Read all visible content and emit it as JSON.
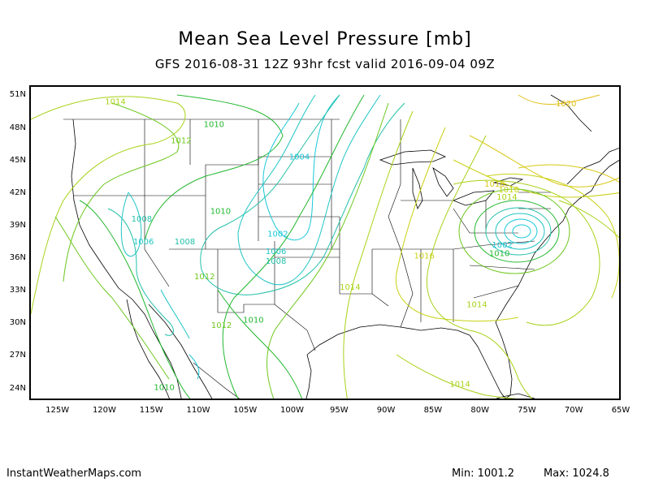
{
  "title": "Mean Sea Level Pressure [mb]",
  "subtitle": "GFS 2016-08-31 12Z 93hr fcst valid 2016-09-04 09Z",
  "lat_labels": [
    "51N",
    "48N",
    "45N",
    "42N",
    "39N",
    "36N",
    "33N",
    "30N",
    "27N",
    "24N"
  ],
  "lon_labels": [
    "125W",
    "120W",
    "115W",
    "110W",
    "105W",
    "100W",
    "95W",
    "90W",
    "85W",
    "80W",
    "75W",
    "70W",
    "65W"
  ],
  "footer": {
    "site": "InstantWeatherMaps.com",
    "min_label": "Min: 1001.2",
    "max_label": "Max: 1024.8"
  },
  "colors": {
    "c1004": "#17c8d8",
    "c1006": "#20c4c4",
    "c1008": "#22c0a8",
    "c1010": "#22b830",
    "c1012": "#6ec81e",
    "c1014": "#a8d218",
    "c1016": "#c8d214",
    "c1018": "#d8c814",
    "c1020": "#e0be14"
  },
  "contour_labels": [
    {
      "text": "1014",
      "color": "c1014",
      "lon": -119,
      "lat": 50.4
    },
    {
      "text": "1010",
      "color": "c1010",
      "lon": -108.5,
      "lat": 48.3
    },
    {
      "text": "1012",
      "color": "c1012",
      "lon": -112,
      "lat": 46.8
    },
    {
      "text": "1004",
      "color": "c1004",
      "lon": -99.4,
      "lat": 45.3
    },
    {
      "text": "1008",
      "color": "c1008",
      "lon": -116.2,
      "lat": 39.6
    },
    {
      "text": "1010",
      "color": "c1010",
      "lon": -107.8,
      "lat": 40.3
    },
    {
      "text": "1006",
      "color": "c1006",
      "lon": -116,
      "lat": 37.5
    },
    {
      "text": "1008",
      "color": "c1008",
      "lon": -111.6,
      "lat": 37.5
    },
    {
      "text": "1002",
      "color": "c1004",
      "lon": -101.7,
      "lat": 38.2
    },
    {
      "text": "1006",
      "color": "c1006",
      "lon": -101.9,
      "lat": 36.6
    },
    {
      "text": "1008",
      "color": "c1008",
      "lon": -101.9,
      "lat": 35.7
    },
    {
      "text": "1012",
      "color": "c1012",
      "lon": -109.5,
      "lat": 34.3
    },
    {
      "text": "1010",
      "color": "c1010",
      "lon": -104.3,
      "lat": 30.3
    },
    {
      "text": "1012",
      "color": "c1012",
      "lon": -107.7,
      "lat": 29.8
    },
    {
      "text": "1014",
      "color": "c1014",
      "lon": -94,
      "lat": 33.3
    },
    {
      "text": "1010",
      "color": "c1010",
      "lon": -113.8,
      "lat": 24.1
    },
    {
      "text": "1016",
      "color": "c1016",
      "lon": -86.1,
      "lat": 36.2
    },
    {
      "text": "1010",
      "color": "c1010",
      "lon": -78.1,
      "lat": 36.4
    },
    {
      "text": "1014",
      "color": "c1014",
      "lon": -80.5,
      "lat": 31.7
    },
    {
      "text": "1014",
      "color": "c1014",
      "lon": -82.3,
      "lat": 24.4
    },
    {
      "text": "1018",
      "color": "c1018",
      "lon": -78.6,
      "lat": 42.8
    },
    {
      "text": "1016",
      "color": "c1016",
      "lon": -77.1,
      "lat": 42.3
    },
    {
      "text": "1014",
      "color": "c1014",
      "lon": -77.3,
      "lat": 41.6
    },
    {
      "text": "1020",
      "color": "c1020",
      "lon": -71,
      "lat": 50.2
    },
    {
      "text": "1002",
      "color": "c1004",
      "lon": -77.8,
      "lat": 37.2
    }
  ]
}
